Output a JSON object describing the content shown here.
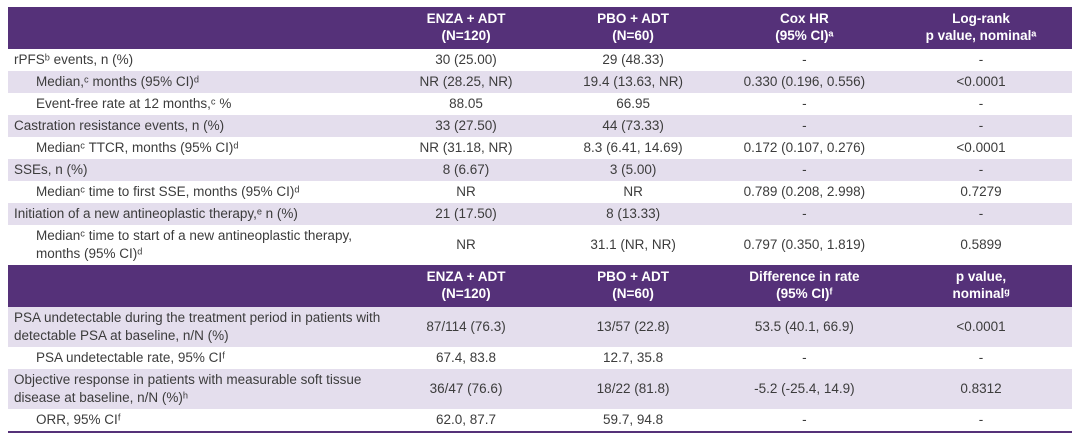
{
  "colors": {
    "header_bg": "#553179",
    "header_text": "#ffffff",
    "row_shaded_bg": "#e4deed",
    "row_plain_bg": "#ffffff",
    "body_text": "#3c3c3c",
    "bottom_border": "#553179"
  },
  "section1": {
    "header": [
      "",
      "ENZA + ADT\n(N=120)",
      "PBO + ADT\n(N=60)",
      "Cox HR\n(95% CI)ᵃ",
      "Log-rank\np value, nominalᵃ"
    ],
    "rows": [
      {
        "label": "rPFSᵇ events, n (%)",
        "values": [
          "30 (25.00)",
          "29 (48.33)",
          "-",
          "-"
        ]
      },
      {
        "label": "Median,ᶜ months (95% CI)ᵈ",
        "values": [
          "NR (28.25, NR)",
          "19.4 (13.63, NR)",
          "0.330 (0.196, 0.556)",
          "<0.0001"
        ]
      },
      {
        "label": "Event-free rate at 12 months,ᶜ %",
        "values": [
          "88.05",
          "66.95",
          "-",
          "-"
        ]
      },
      {
        "label": "Castration resistance events, n (%)",
        "values": [
          "33 (27.50)",
          "44 (73.33)",
          "-",
          "-"
        ]
      },
      {
        "label": "Medianᶜ TTCR, months (95% CI)ᵈ",
        "values": [
          "NR (31.18, NR)",
          "8.3 (6.41, 14.69)",
          "0.172 (0.107, 0.276)",
          "<0.0001"
        ]
      },
      {
        "label": "SSEs, n (%)",
        "values": [
          "8 (6.67)",
          "3 (5.00)",
          "-",
          "-"
        ]
      },
      {
        "label": "Medianᶜ time to first SSE, months (95% CI)ᵈ",
        "values": [
          "NR",
          "NR",
          "0.789 (0.208, 2.998)",
          "0.7279"
        ]
      },
      {
        "label": "Initiation of a new antineoplastic therapy,ᵉ n (%)",
        "values": [
          "21 (17.50)",
          "8 (13.33)",
          "-",
          "-"
        ]
      },
      {
        "label": "Medianᶜ time to start of a new antineoplastic therapy, months (95% CI)ᵈ",
        "values": [
          "NR",
          "31.1 (NR, NR)",
          "0.797 (0.350, 1.819)",
          "0.5899"
        ]
      }
    ]
  },
  "section2": {
    "header": [
      "",
      "ENZA + ADT\n(N=120)",
      "PBO + ADT\n(N=60)",
      "Difference in rate\n(95% CI)ᶠ",
      "p value,\nnominalᵍ"
    ],
    "rows": [
      {
        "label": "PSA undetectable during the treatment period in patients with detectable PSA at baseline, n/N (%)",
        "values": [
          "87/114 (76.3)",
          "13/57 (22.8)",
          "53.5 (40.1, 66.9)",
          "<0.0001"
        ]
      },
      {
        "label": "PSA undetectable rate, 95% CIᶠ",
        "values": [
          "67.4, 83.8",
          "12.7, 35.8",
          "-",
          "-"
        ]
      },
      {
        "label": "Objective response in patients with measurable soft tissue disease at baseline, n/N (%)ʰ",
        "values": [
          "36/47 (76.6)",
          "18/22 (81.8)",
          "-5.2 (-25.4, 14.9)",
          "0.8312"
        ]
      },
      {
        "label": "ORR, 95% CIᶠ",
        "values": [
          "62.0, 87.7",
          "59.7, 94.8",
          "-",
          "-"
        ]
      }
    ]
  }
}
